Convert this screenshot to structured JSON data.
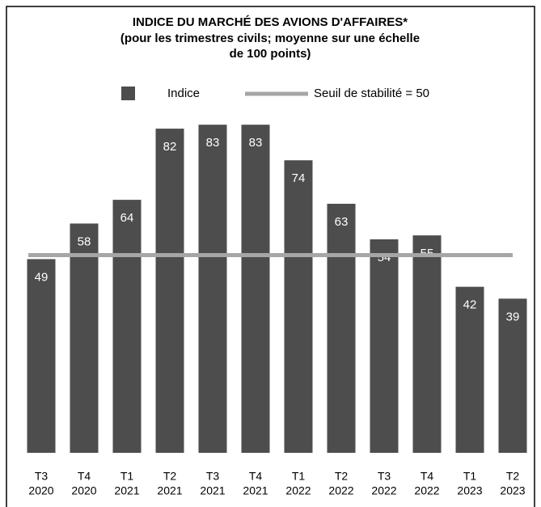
{
  "chart_data": {
    "type": "bar",
    "title": "INDICE DU MARCHÉ DES AVIONS D'AFFAIRES*",
    "subtitle": [
      "(pour les trimestres civils; moyenne sur une échelle",
      "de 100 points)"
    ],
    "categories": [
      [
        "T3",
        "2020"
      ],
      [
        "T4",
        "2020"
      ],
      [
        "T1",
        "2021"
      ],
      [
        "T2",
        "2021"
      ],
      [
        "T3",
        "2021"
      ],
      [
        "T4",
        "2021"
      ],
      [
        "T1",
        "2022"
      ],
      [
        "T2",
        "2022"
      ],
      [
        "T3",
        "2022"
      ],
      [
        "T4",
        "2022"
      ],
      [
        "T1",
        "2023"
      ],
      [
        "T2",
        "2023"
      ]
    ],
    "series": [
      {
        "name": "Indice",
        "color": "#4d4d4d",
        "values": [
          49,
          58,
          64,
          82,
          83,
          83,
          74,
          63,
          54,
          55,
          42,
          39
        ]
      }
    ],
    "reference_line": {
      "name": "Seuil de stabilité = 50",
      "value": 50,
      "color": "#a6a6a6"
    },
    "ylim": [
      0,
      90
    ]
  }
}
